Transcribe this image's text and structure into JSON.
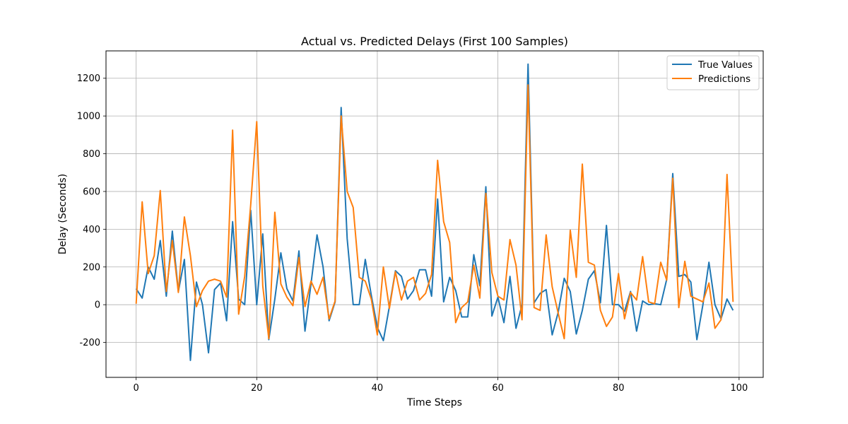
{
  "chart_data": {
    "type": "line",
    "title": "Actual vs. Predicted Delays (First 100 Samples)",
    "xlabel": "Time Steps",
    "ylabel": "Delay (Seconds)",
    "xlim": [
      -5,
      104
    ],
    "ylim": [
      -385,
      1345
    ],
    "xticks": [
      0,
      20,
      40,
      60,
      80,
      100
    ],
    "yticks": [
      -200,
      0,
      200,
      400,
      600,
      800,
      1000,
      1200
    ],
    "grid": true,
    "legend": "top-right",
    "x_start": 0,
    "series": [
      {
        "name": "True Values",
        "color": "#1f77b4",
        "values": [
          85,
          35,
          200,
          135,
          340,
          45,
          390,
          70,
          240,
          -295,
          120,
          0,
          -255,
          80,
          115,
          -85,
          440,
          30,
          0,
          500,
          0,
          375,
          -185,
          30,
          275,
          85,
          20,
          285,
          -140,
          110,
          370,
          200,
          -85,
          15,
          1045,
          350,
          0,
          0,
          240,
          50,
          -120,
          -190,
          -10,
          180,
          150,
          30,
          75,
          185,
          185,
          45,
          560,
          15,
          145,
          75,
          -65,
          -65,
          265,
          100,
          625,
          -60,
          40,
          -95,
          150,
          -125,
          0,
          1275,
          10,
          60,
          80,
          -160,
          -40,
          140,
          70,
          -155,
          -30,
          135,
          180,
          10,
          420,
          0,
          0,
          -35,
          70,
          -140,
          20,
          0,
          5,
          0,
          135,
          695,
          150,
          160,
          120,
          -185,
          0,
          225,
          0,
          -75,
          30,
          -30
        ]
      },
      {
        "name": "Predictions",
        "color": "#ff7f0e",
        "values": [
          5,
          545,
          165,
          260,
          605,
          70,
          340,
          65,
          465,
          260,
          -10,
          75,
          125,
          135,
          125,
          40,
          925,
          -50,
          150,
          530,
          970,
          100,
          -180,
          490,
          110,
          40,
          -5,
          250,
          -10,
          125,
          55,
          145,
          -75,
          20,
          1000,
          600,
          515,
          145,
          125,
          30,
          -160,
          200,
          -20,
          175,
          25,
          125,
          145,
          25,
          60,
          160,
          765,
          440,
          330,
          -95,
          -15,
          15,
          210,
          35,
          590,
          170,
          45,
          25,
          345,
          210,
          -80,
          1165,
          -15,
          -30,
          370,
          95,
          -45,
          -180,
          395,
          145,
          745,
          225,
          210,
          -30,
          -115,
          -65,
          165,
          -75,
          65,
          25,
          255,
          15,
          5,
          225,
          130,
          670,
          -15,
          230,
          45,
          30,
          15,
          115,
          -125,
          -80,
          690,
          15
        ]
      }
    ]
  }
}
